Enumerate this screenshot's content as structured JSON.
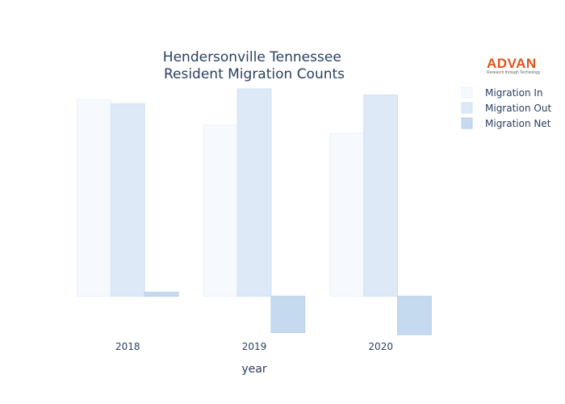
{
  "logo": {
    "name": "ADVAN",
    "tagline": "Research through Technology",
    "color": "#e2531e"
  },
  "chart_data": {
    "type": "bar",
    "title_lines": [
      "Hendersonville Tennessee",
      "Resident Migration Counts"
    ],
    "xlabel": "year",
    "ylabel": "",
    "categories": [
      "2018",
      "2019",
      "2020"
    ],
    "series": [
      {
        "name": "Migration In",
        "values": [
          2920,
          2540,
          2420
        ],
        "color": "#f6faff",
        "stroke": "#eaf2fb"
      },
      {
        "name": "Migration Out",
        "values": [
          2860,
          3080,
          2990
        ],
        "color": "#dde9f7",
        "stroke": "#d3e2f4"
      },
      {
        "name": "Migration Net",
        "values": [
          60,
          -540,
          -570
        ],
        "color": "#c5d9ef",
        "stroke": "#b9d0ea"
      }
    ],
    "ylim": [
      -640,
      3200
    ],
    "grid": false,
    "show_y_ticks": false,
    "legend_position": "top-right"
  }
}
